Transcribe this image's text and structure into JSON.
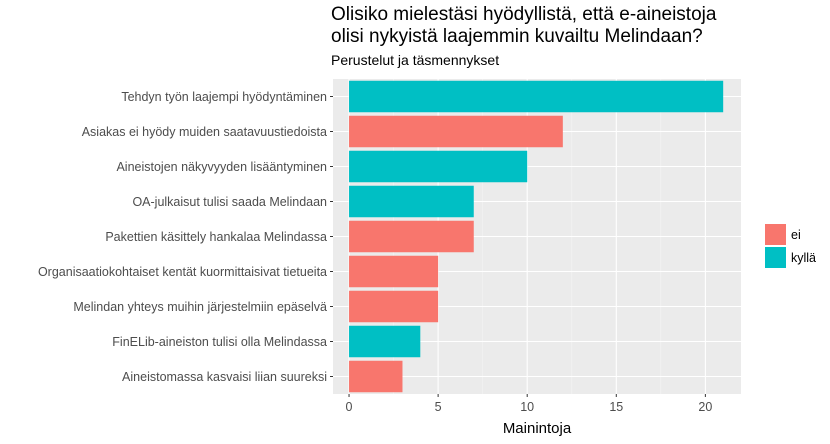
{
  "chart_data": {
    "type": "bar",
    "orientation": "horizontal",
    "title_lines": [
      "Olisiko mielestäsi hyödyllistä, että e-aineistoja",
      "olisi nykyistä laajemmin kuvailtu Melindaan?"
    ],
    "subtitle": "Perustelut ja täsmennykset",
    "xlabel": "Mainintoja",
    "xlim": [
      -0.9,
      22.0
    ],
    "xticks": [
      0,
      5,
      10,
      15,
      20
    ],
    "grid": true,
    "legend_position": "right",
    "legend": [
      {
        "key": "ei",
        "label": "ei",
        "color": "#F8766D"
      },
      {
        "key": "kyllä",
        "label": "kyllä",
        "color": "#00BFC4"
      }
    ],
    "categories": [
      "Tehdyn työn laajempi hyödyntäminen",
      "Asiakas ei hyödy muiden saatavuustiedoista",
      "Aineistojen näkyvyyden lisääntyminen",
      "OA-julkaisut tulisi saada Melindaan",
      "Pakettien käsittely hankalaa Melindassa",
      "Organisaatiokohtaiset kentät kuormittaisivat tietueita",
      "Melindan yhteys muihin järjestelmiin epäselvä",
      "FinELib-aineiston tulisi olla Melindassa",
      "Aineistomassa kasvaisi liian suureksi"
    ],
    "values": [
      21,
      12,
      10,
      7,
      7,
      5,
      5,
      4,
      3
    ],
    "groups": [
      "kyllä",
      "ei",
      "kyllä",
      "kyllä",
      "ei",
      "ei",
      "ei",
      "kyllä",
      "ei"
    ]
  }
}
